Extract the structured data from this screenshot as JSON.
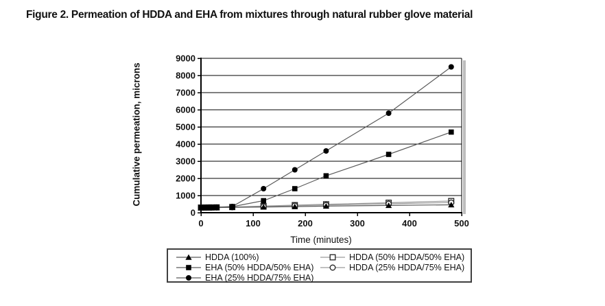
{
  "figure_title": "Figure 2. Permeation of HDDA and EHA from mixtures through natural rubber glove material",
  "colors": {
    "background": "#ffffff",
    "text": "#111111",
    "gridline": "#000000",
    "axis": "#000000",
    "filled_series_line": "#5a5a5a",
    "open_series_line": "#9a9a9a",
    "marker_fill": "#000000",
    "open_marker_stroke": "#1f1f1f",
    "plot_shadow": "#bdbdbd",
    "legend_border": "#3f3f3f"
  },
  "chart_data": {
    "type": "line",
    "title": "",
    "xlabel": "Time (minutes)",
    "ylabel": "Cumulative permeation, microns",
    "xlim": [
      0,
      500
    ],
    "ylim": [
      0,
      9000
    ],
    "x_ticks": [
      0,
      100,
      200,
      300,
      400,
      500
    ],
    "y_ticks": [
      0,
      1000,
      2000,
      3000,
      4000,
      5000,
      6000,
      7000,
      8000,
      9000
    ],
    "grid": "horizontal gridlines at every 1000, plot area framed",
    "legend_position": "boxed, below x-axis, two columns",
    "x": [
      0,
      5,
      10,
      15,
      20,
      30,
      60,
      120,
      180,
      240,
      360,
      480
    ],
    "series": [
      {
        "name": "HDDA (100%)",
        "marker": "triangle-filled",
        "line_color": "#5a5a5a",
        "values": [
          280,
          285,
          290,
          290,
          295,
          300,
          310,
          330,
          355,
          385,
          425,
          460
        ]
      },
      {
        "name": "EHA (50% HDDA/50% EHA)",
        "marker": "square-filled",
        "line_color": "#5a5a5a",
        "values": [
          300,
          300,
          305,
          305,
          310,
          315,
          350,
          700,
          1400,
          2150,
          3400,
          4700
        ]
      },
      {
        "name": "EHA (25% HDDA/75% EHA)",
        "marker": "circle-filled",
        "line_color": "#5a5a5a",
        "values": [
          300,
          305,
          310,
          310,
          315,
          320,
          360,
          1400,
          2500,
          3600,
          5800,
          8500
        ]
      },
      {
        "name": "HDDA (50% HDDA/50% EHA)",
        "marker": "square-open",
        "line_color": "#9a9a9a",
        "values": [
          300,
          300,
          300,
          305,
          305,
          310,
          330,
          390,
          440,
          490,
          580,
          680
        ]
      },
      {
        "name": "HDDA (25% HDDA/75% EHA)",
        "marker": "circle-open",
        "line_color": "#9a9a9a",
        "values": [
          290,
          295,
          295,
          300,
          300,
          305,
          320,
          360,
          410,
          450,
          520,
          590
        ]
      }
    ],
    "legend_columns": [
      [
        0,
        1,
        2
      ],
      [
        3,
        4
      ]
    ]
  }
}
